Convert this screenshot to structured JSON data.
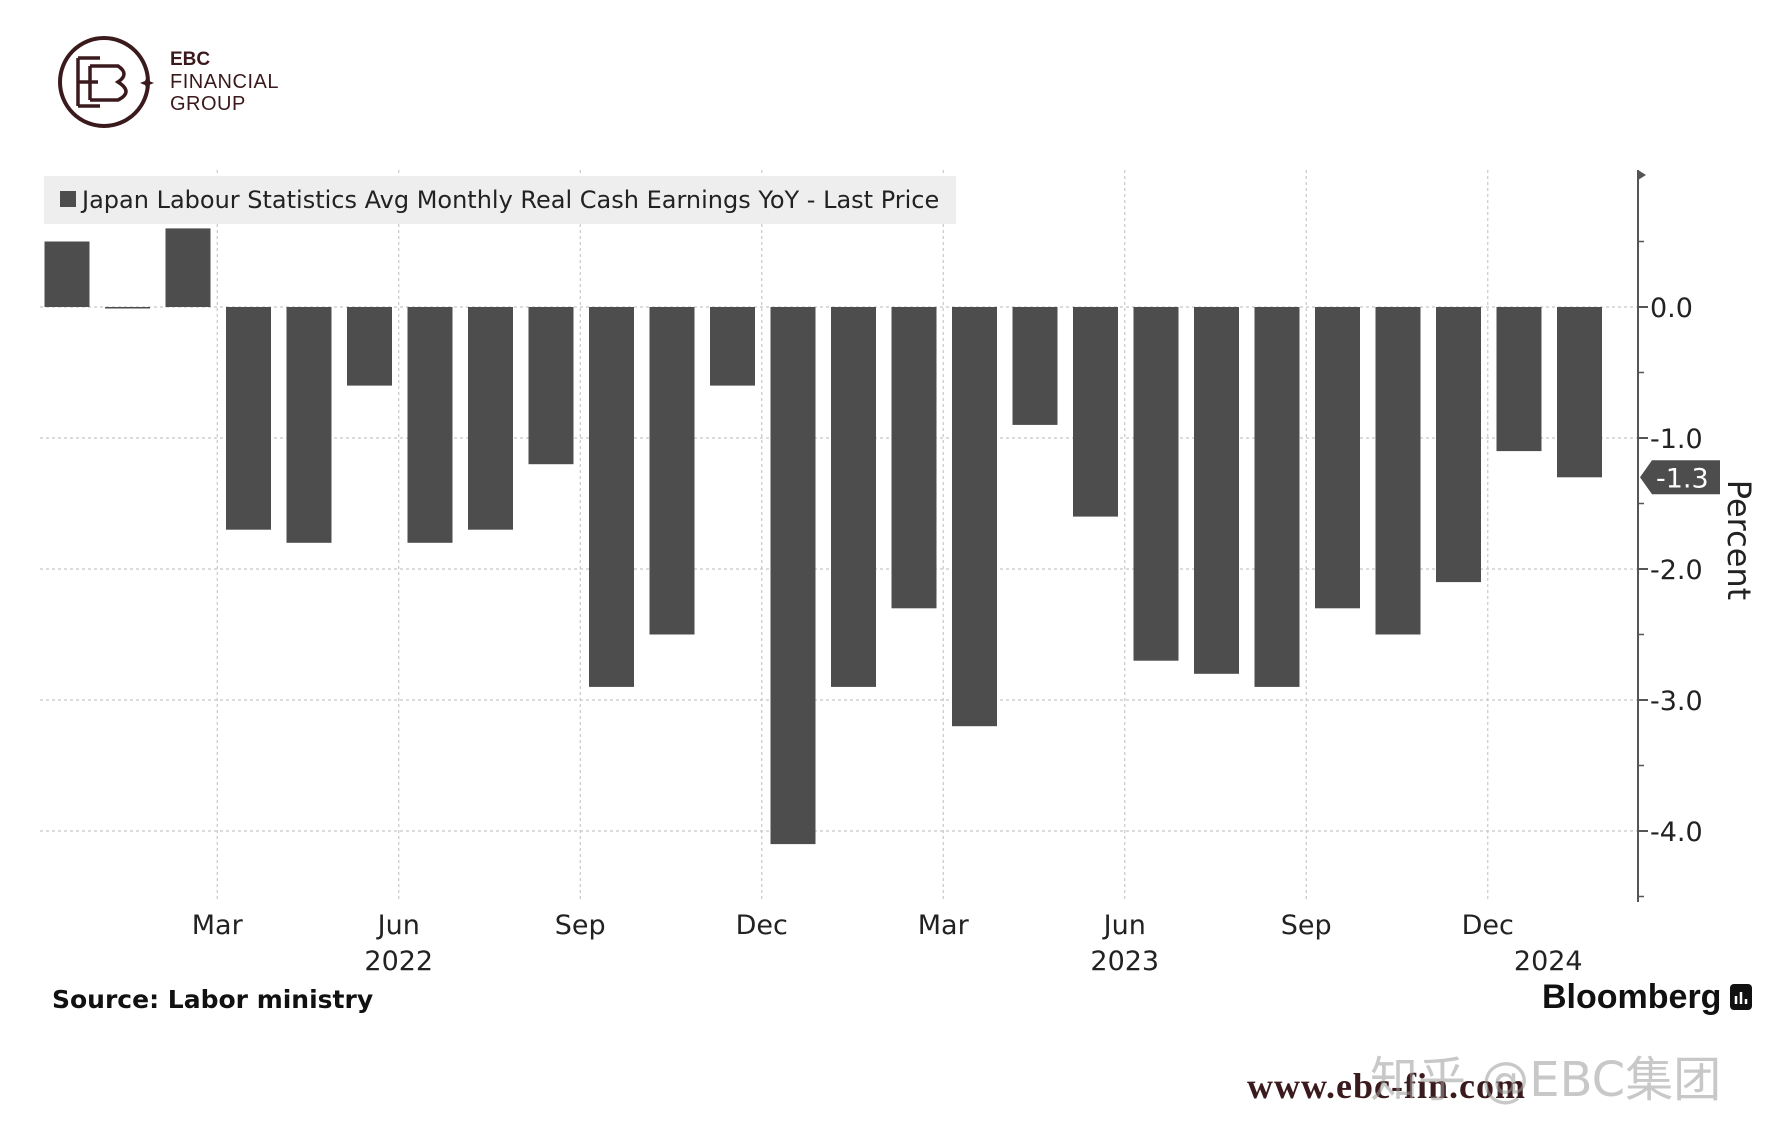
{
  "logo": {
    "line1": "EBC",
    "line2": "FINANCIAL",
    "line3": "GROUP"
  },
  "chart_data": {
    "type": "bar",
    "title": "Japan Labour Statistics Avg Monthly Real Cash Earnings YoY - Last Price",
    "legend": "Japan Labour Statistics Avg Monthly Real Cash Earnings YoY - Last Price",
    "legend_position": "top-left",
    "ylabel": "Percent",
    "xlabel": "",
    "ylim": [
      -4.5,
      1.0
    ],
    "grid": true,
    "y_ticks": [
      0.0,
      -1.0,
      -2.0,
      -3.0,
      -4.0
    ],
    "y_tick_labels": [
      "0.0",
      "-1.0",
      "-2.0",
      "-3.0",
      "-4.0"
    ],
    "categories": [
      "Jan 2022",
      "Feb 2022",
      "Mar 2022",
      "Apr 2022",
      "May 2022",
      "Jun 2022",
      "Jul 2022",
      "Aug 2022",
      "Sep 2022",
      "Oct 2022",
      "Nov 2022",
      "Dec 2022",
      "Jan 2023",
      "Feb 2023",
      "Mar 2023",
      "Apr 2023",
      "May 2023",
      "Jun 2023",
      "Jul 2023",
      "Aug 2023",
      "Sep 2023",
      "Oct 2023",
      "Nov 2023",
      "Dec 2023",
      "Jan 2024",
      "Feb 2024"
    ],
    "values": [
      0.5,
      0.0,
      0.6,
      -1.7,
      -1.8,
      -0.6,
      -1.8,
      -1.7,
      -1.2,
      -2.9,
      -2.5,
      -0.6,
      -4.1,
      -2.9,
      -2.3,
      -3.2,
      -0.9,
      -1.6,
      -2.7,
      -2.8,
      -2.9,
      -2.3,
      -2.5,
      -2.1,
      -1.1,
      -1.3
    ],
    "x_tick_labels": [
      {
        "label": "Mar",
        "index": 2
      },
      {
        "label": "Jun",
        "index": 5
      },
      {
        "label": "Sep",
        "index": 8
      },
      {
        "label": "Dec",
        "index": 11
      },
      {
        "label": "Mar",
        "index": 14
      },
      {
        "label": "Jun",
        "index": 17
      },
      {
        "label": "Sep",
        "index": 20
      },
      {
        "label": "Dec",
        "index": 23
      }
    ],
    "year_labels": [
      {
        "label": "2022",
        "index": 5
      },
      {
        "label": "2023",
        "index": 17
      },
      {
        "label": "2024",
        "index": 24
      }
    ],
    "last_value_label": "-1.3",
    "last_value": -1.3
  },
  "colors": {
    "bar": "#4d4d4d",
    "grid": "#c8c8c8",
    "legend_bg": "#eeeeee",
    "last_label_bg": "#4d4d4d",
    "logo": "#3b1a1d"
  },
  "footer": {
    "source": "Source: Labor ministry",
    "brand": "Bloomberg",
    "url": "www.ebc-fin.com",
    "watermark": "知乎 @EBC集团"
  }
}
